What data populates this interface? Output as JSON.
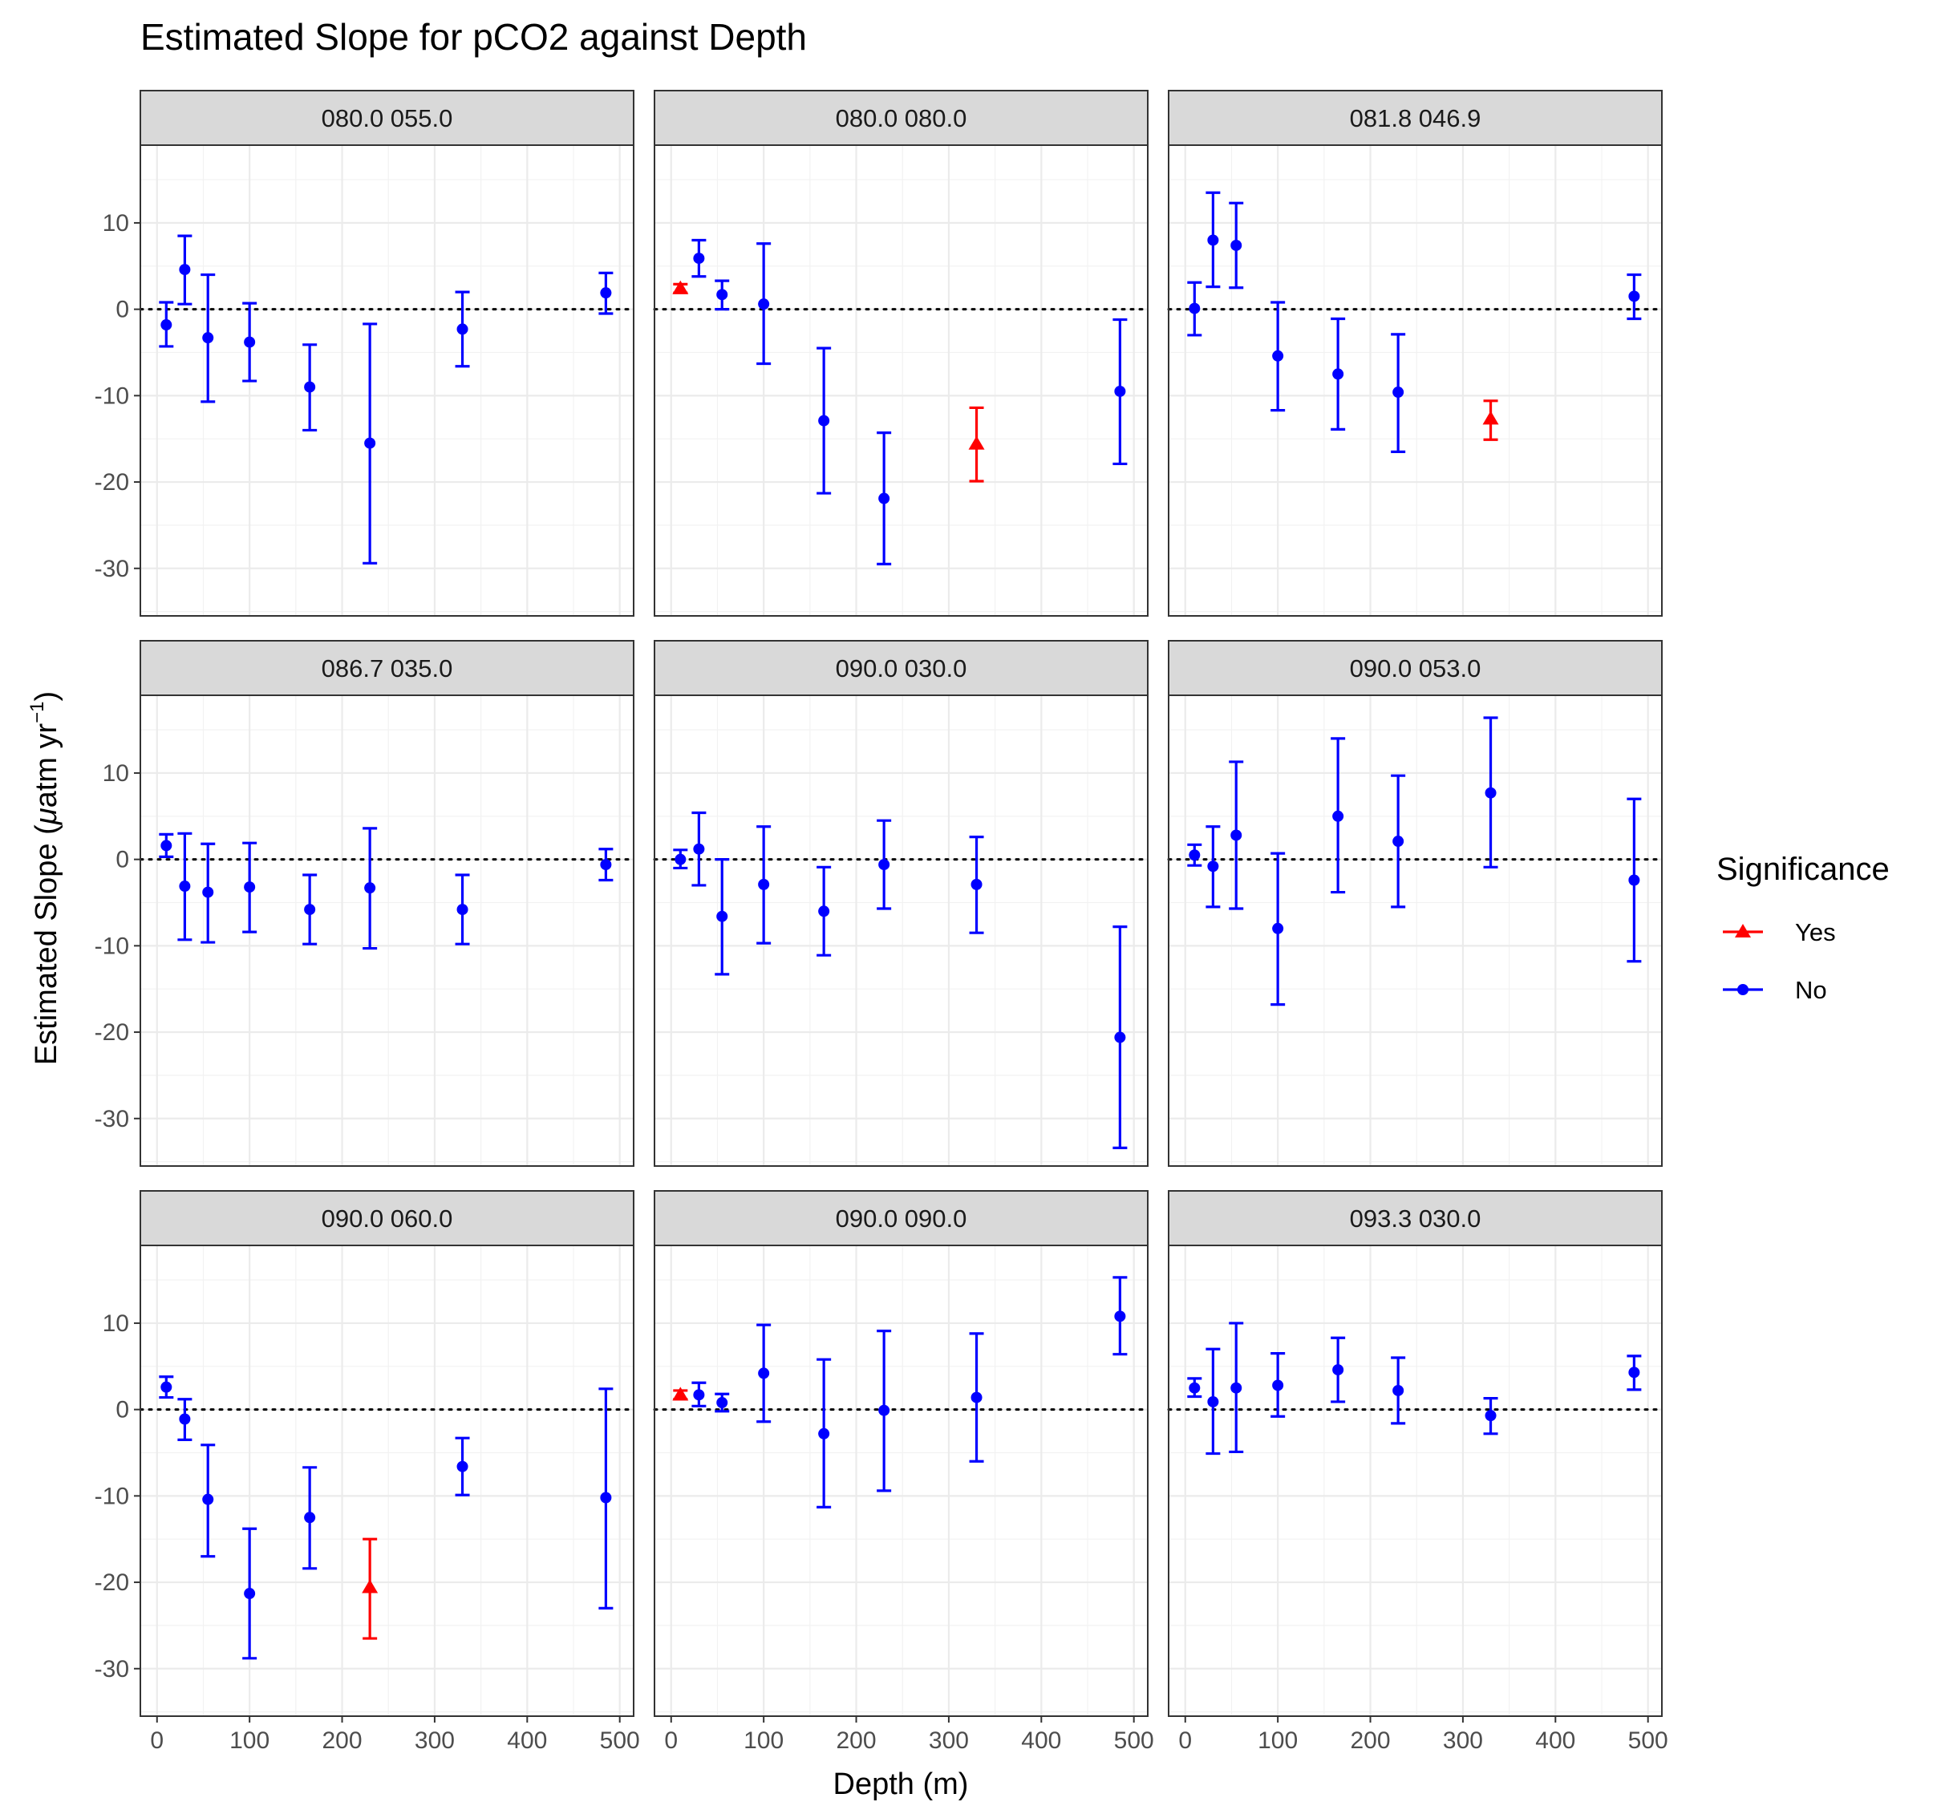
{
  "chart_data": {
    "type": "scatter",
    "title": "Estimated Slope for pCO2 against Depth",
    "xlabel": "Depth (m)",
    "ylabel": {
      "prefix": "Estimated Slope (",
      "mu": "μ",
      "unit": "atm yr",
      "sup": "−1",
      "suffix": ")"
    },
    "xlim": [
      -18,
      515
    ],
    "ylim": [
      -35.5,
      19
    ],
    "x_ticks": [
      0,
      100,
      200,
      300,
      400,
      500
    ],
    "y_ticks": [
      10,
      0,
      -10,
      -20,
      -30
    ],
    "x_tick_labels": [
      "0",
      "100",
      "200",
      "300",
      "400",
      "500"
    ],
    "y_tick_labels": [
      "10",
      "0",
      "-10",
      "-20",
      "-30"
    ],
    "grid": true,
    "reference_line": {
      "y": 0,
      "style": "dotted"
    },
    "legend": {
      "title": "Significance",
      "placement": "right",
      "entries": [
        {
          "label": "Yes",
          "color": "#FF0000",
          "shape": "triangle"
        },
        {
          "label": "No",
          "color": "#0000FF",
          "shape": "circle"
        }
      ]
    },
    "colors": {
      "Yes": "#FF0000",
      "No": "#0000FF"
    },
    "panels": [
      {
        "label": "080.0 055.0",
        "points": [
          {
            "x": 10,
            "y": -1.8,
            "lo": -4.3,
            "hi": 0.8,
            "sig": "No"
          },
          {
            "x": 30,
            "y": 4.6,
            "lo": 0.6,
            "hi": 8.5,
            "sig": "No"
          },
          {
            "x": 55,
            "y": -3.3,
            "lo": -10.7,
            "hi": 4.0,
            "sig": "No"
          },
          {
            "x": 100,
            "y": -3.8,
            "lo": -8.3,
            "hi": 0.7,
            "sig": "No"
          },
          {
            "x": 165,
            "y": -9.0,
            "lo": -14.0,
            "hi": -4.1,
            "sig": "No"
          },
          {
            "x": 230,
            "y": -15.5,
            "lo": -29.4,
            "hi": -1.7,
            "sig": "No"
          },
          {
            "x": 330,
            "y": -2.3,
            "lo": -6.6,
            "hi": 2.0,
            "sig": "No"
          },
          {
            "x": 485,
            "y": 1.9,
            "lo": -0.5,
            "hi": 4.2,
            "sig": "No"
          }
        ]
      },
      {
        "label": "080.0 080.0",
        "points": [
          {
            "x": 10,
            "y": 2.4,
            "lo": 1.9,
            "hi": 2.9,
            "sig": "Yes"
          },
          {
            "x": 30,
            "y": 5.9,
            "lo": 3.8,
            "hi": 8.0,
            "sig": "No"
          },
          {
            "x": 55,
            "y": 1.7,
            "lo": 0.0,
            "hi": 3.3,
            "sig": "No"
          },
          {
            "x": 100,
            "y": 0.6,
            "lo": -6.3,
            "hi": 7.6,
            "sig": "No"
          },
          {
            "x": 165,
            "y": -12.9,
            "lo": -21.3,
            "hi": -4.5,
            "sig": "No"
          },
          {
            "x": 230,
            "y": -21.9,
            "lo": -29.5,
            "hi": -14.3,
            "sig": "No"
          },
          {
            "x": 330,
            "y": -15.6,
            "lo": -19.9,
            "hi": -11.4,
            "sig": "Yes"
          },
          {
            "x": 485,
            "y": -9.5,
            "lo": -17.9,
            "hi": -1.2,
            "sig": "No"
          }
        ]
      },
      {
        "label": "081.8 046.9",
        "points": [
          {
            "x": 10,
            "y": 0.1,
            "lo": -3.0,
            "hi": 3.1,
            "sig": "No"
          },
          {
            "x": 30,
            "y": 8.0,
            "lo": 2.6,
            "hi": 13.5,
            "sig": "No"
          },
          {
            "x": 55,
            "y": 7.4,
            "lo": 2.5,
            "hi": 12.3,
            "sig": "No"
          },
          {
            "x": 100,
            "y": -5.4,
            "lo": -11.7,
            "hi": 0.8,
            "sig": "No"
          },
          {
            "x": 165,
            "y": -7.5,
            "lo": -13.9,
            "hi": -1.1,
            "sig": "No"
          },
          {
            "x": 230,
            "y": -9.6,
            "lo": -16.5,
            "hi": -2.9,
            "sig": "No"
          },
          {
            "x": 330,
            "y": -12.7,
            "lo": -15.1,
            "hi": -10.6,
            "sig": "Yes"
          },
          {
            "x": 485,
            "y": 1.5,
            "lo": -1.1,
            "hi": 4.0,
            "sig": "No"
          }
        ]
      },
      {
        "label": "086.7 035.0",
        "points": [
          {
            "x": 10,
            "y": 1.6,
            "lo": 0.3,
            "hi": 2.9,
            "sig": "No"
          },
          {
            "x": 30,
            "y": -3.1,
            "lo": -9.3,
            "hi": 3.0,
            "sig": "No"
          },
          {
            "x": 55,
            "y": -3.8,
            "lo": -9.6,
            "hi": 1.8,
            "sig": "No"
          },
          {
            "x": 100,
            "y": -3.2,
            "lo": -8.4,
            "hi": 1.9,
            "sig": "No"
          },
          {
            "x": 165,
            "y": -5.8,
            "lo": -9.8,
            "hi": -1.8,
            "sig": "No"
          },
          {
            "x": 230,
            "y": -3.3,
            "lo": -10.3,
            "hi": 3.6,
            "sig": "No"
          },
          {
            "x": 330,
            "y": -5.8,
            "lo": -9.8,
            "hi": -1.8,
            "sig": "No"
          },
          {
            "x": 485,
            "y": -0.6,
            "lo": -2.4,
            "hi": 1.2,
            "sig": "No"
          }
        ]
      },
      {
        "label": "090.0 030.0",
        "points": [
          {
            "x": 10,
            "y": 0.0,
            "lo": -1.0,
            "hi": 1.1,
            "sig": "No"
          },
          {
            "x": 30,
            "y": 1.2,
            "lo": -3.0,
            "hi": 5.4,
            "sig": "No"
          },
          {
            "x": 55,
            "y": -6.6,
            "lo": -13.3,
            "hi": 0.0,
            "sig": "No"
          },
          {
            "x": 100,
            "y": -2.9,
            "lo": -9.7,
            "hi": 3.8,
            "sig": "No"
          },
          {
            "x": 165,
            "y": -6.0,
            "lo": -11.1,
            "hi": -0.9,
            "sig": "No"
          },
          {
            "x": 230,
            "y": -0.6,
            "lo": -5.7,
            "hi": 4.5,
            "sig": "No"
          },
          {
            "x": 330,
            "y": -2.9,
            "lo": -8.5,
            "hi": 2.6,
            "sig": "No"
          },
          {
            "x": 485,
            "y": -20.6,
            "lo": -33.4,
            "hi": -7.8,
            "sig": "No"
          }
        ]
      },
      {
        "label": "090.0 053.0",
        "points": [
          {
            "x": 10,
            "y": 0.5,
            "lo": -0.7,
            "hi": 1.7,
            "sig": "No"
          },
          {
            "x": 30,
            "y": -0.8,
            "lo": -5.5,
            "hi": 3.8,
            "sig": "No"
          },
          {
            "x": 55,
            "y": 2.8,
            "lo": -5.7,
            "hi": 11.3,
            "sig": "No"
          },
          {
            "x": 100,
            "y": -8.0,
            "lo": -16.8,
            "hi": 0.7,
            "sig": "No"
          },
          {
            "x": 165,
            "y": 5.0,
            "lo": -3.8,
            "hi": 14.0,
            "sig": "No"
          },
          {
            "x": 230,
            "y": 2.1,
            "lo": -5.5,
            "hi": 9.7,
            "sig": "No"
          },
          {
            "x": 330,
            "y": 7.7,
            "lo": -0.9,
            "hi": 16.4,
            "sig": "No"
          },
          {
            "x": 485,
            "y": -2.4,
            "lo": -11.8,
            "hi": 7.0,
            "sig": "No"
          }
        ]
      },
      {
        "label": "090.0 060.0",
        "points": [
          {
            "x": 10,
            "y": 2.6,
            "lo": 1.4,
            "hi": 3.8,
            "sig": "No"
          },
          {
            "x": 30,
            "y": -1.1,
            "lo": -3.5,
            "hi": 1.2,
            "sig": "No"
          },
          {
            "x": 55,
            "y": -10.4,
            "lo": -17.0,
            "hi": -4.1,
            "sig": "No"
          },
          {
            "x": 100,
            "y": -21.3,
            "lo": -28.8,
            "hi": -13.8,
            "sig": "No"
          },
          {
            "x": 165,
            "y": -12.5,
            "lo": -18.4,
            "hi": -6.7,
            "sig": "No"
          },
          {
            "x": 230,
            "y": -20.6,
            "lo": -26.5,
            "hi": -15.0,
            "sig": "Yes"
          },
          {
            "x": 330,
            "y": -6.6,
            "lo": -9.9,
            "hi": -3.3,
            "sig": "No"
          },
          {
            "x": 485,
            "y": -10.2,
            "lo": -23.0,
            "hi": 2.4,
            "sig": "No"
          }
        ]
      },
      {
        "label": "090.0 090.0",
        "points": [
          {
            "x": 10,
            "y": 1.7,
            "lo": 1.2,
            "hi": 2.2,
            "sig": "Yes"
          },
          {
            "x": 30,
            "y": 1.7,
            "lo": 0.4,
            "hi": 3.1,
            "sig": "No"
          },
          {
            "x": 55,
            "y": 0.8,
            "lo": -0.2,
            "hi": 1.8,
            "sig": "No"
          },
          {
            "x": 100,
            "y": 4.2,
            "lo": -1.4,
            "hi": 9.8,
            "sig": "No"
          },
          {
            "x": 165,
            "y": -2.8,
            "lo": -11.3,
            "hi": 5.8,
            "sig": "No"
          },
          {
            "x": 230,
            "y": -0.1,
            "lo": -9.4,
            "hi": 9.1,
            "sig": "No"
          },
          {
            "x": 330,
            "y": 1.4,
            "lo": -6.0,
            "hi": 8.8,
            "sig": "No"
          },
          {
            "x": 485,
            "y": 10.8,
            "lo": 6.4,
            "hi": 15.3,
            "sig": "No"
          }
        ]
      },
      {
        "label": "093.3 030.0",
        "points": [
          {
            "x": 10,
            "y": 2.5,
            "lo": 1.5,
            "hi": 3.6,
            "sig": "No"
          },
          {
            "x": 30,
            "y": 0.9,
            "lo": -5.1,
            "hi": 7.0,
            "sig": "No"
          },
          {
            "x": 55,
            "y": 2.5,
            "lo": -4.9,
            "hi": 10.0,
            "sig": "No"
          },
          {
            "x": 100,
            "y": 2.8,
            "lo": -0.8,
            "hi": 6.5,
            "sig": "No"
          },
          {
            "x": 165,
            "y": 4.6,
            "lo": 0.9,
            "hi": 8.3,
            "sig": "No"
          },
          {
            "x": 230,
            "y": 2.2,
            "lo": -1.6,
            "hi": 6.0,
            "sig": "No"
          },
          {
            "x": 330,
            "y": -0.7,
            "lo": -2.8,
            "hi": 1.3,
            "sig": "No"
          },
          {
            "x": 485,
            "y": 4.3,
            "lo": 2.3,
            "hi": 6.2,
            "sig": "No"
          }
        ]
      }
    ]
  }
}
